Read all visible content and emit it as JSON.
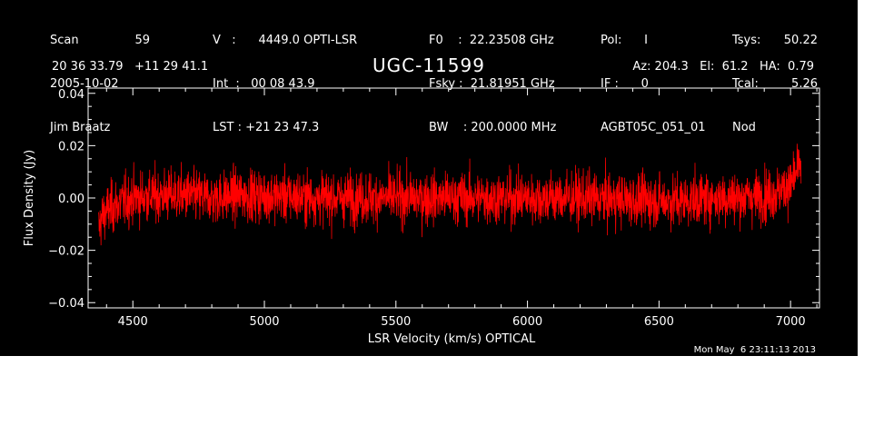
{
  "header": {
    "col1": {
      "scan_label": "Scan",
      "scan_value": "59",
      "date": "2005-10-02",
      "observer": "Jim Braatz"
    },
    "col2": {
      "line1": "V   :      4449.0 OPTI-LSR",
      "line2": "Int  :   00 08 43.9",
      "line3": "LST : +21 23 47.3"
    },
    "col3": {
      "line1": "F0    :  22.23508 GHz",
      "line2": "Fsky :  21.81951 GHz",
      "line3": "BW    : 200.0000 MHz"
    },
    "col4": {
      "line1": "Pol:      I",
      "line2": "IF :      0",
      "line3": "AGBT05C_051_01"
    },
    "col5": {
      "tsys_label": "Tsys:",
      "tsys_value": "50.22",
      "tcal_label": "Tcal:",
      "tcal_value": "5.26",
      "mode": "Nod"
    },
    "coords": "20 36 33.79   +11 29 41.1",
    "source": "UGC-11599",
    "pointing": "Az: 204.3   El:  61.2   HA:  0.79"
  },
  "timestamp": "Mon May  6 23:11:13 2013",
  "colors": {
    "background": "#000000",
    "axes": "#ffffff",
    "trace": "#ff0000"
  },
  "chart_data": {
    "type": "line",
    "title": "UGC-11599",
    "xlabel": "LSR Velocity (km/s) OPTICAL",
    "ylabel": "Flux Density (Jy)",
    "xlim": [
      4330,
      7110
    ],
    "ylim": [
      -0.042,
      0.042
    ],
    "x_ticks": [
      4500,
      5000,
      5500,
      6000,
      6500,
      7000
    ],
    "x_tick_labels": [
      "4500",
      "5000",
      "5500",
      "6000",
      "6500",
      "7000"
    ],
    "y_ticks": [
      0.04,
      0.02,
      0.0,
      -0.02,
      -0.04
    ],
    "y_tick_labels": [
      "0.04",
      "0.02",
      "0.00",
      "−0.02",
      "−0.04"
    ],
    "grid": false,
    "series": [
      {
        "color": "#ff0000",
        "x_range": [
          4370,
          7040
        ],
        "noise_rms_jy": 0.007,
        "x": [
          4370,
          4380,
          4400,
          4450,
          4500,
          4600,
          4700,
          4800,
          4900,
          5000,
          5200,
          5400,
          5600,
          5800,
          6000,
          6200,
          6400,
          6600,
          6700,
          6800,
          6900,
          6950,
          7000,
          7020,
          7040
        ],
        "y": [
          -0.012,
          -0.008,
          -0.005,
          -0.002,
          0.0,
          0.001,
          0.001,
          0.0,
          0.001,
          0.001,
          0.0,
          0.0,
          0.0,
          0.0,
          0.0,
          0.0,
          -0.001,
          -0.001,
          0.0,
          0.0,
          0.001,
          0.002,
          0.005,
          0.009,
          0.013
        ]
      }
    ]
  }
}
